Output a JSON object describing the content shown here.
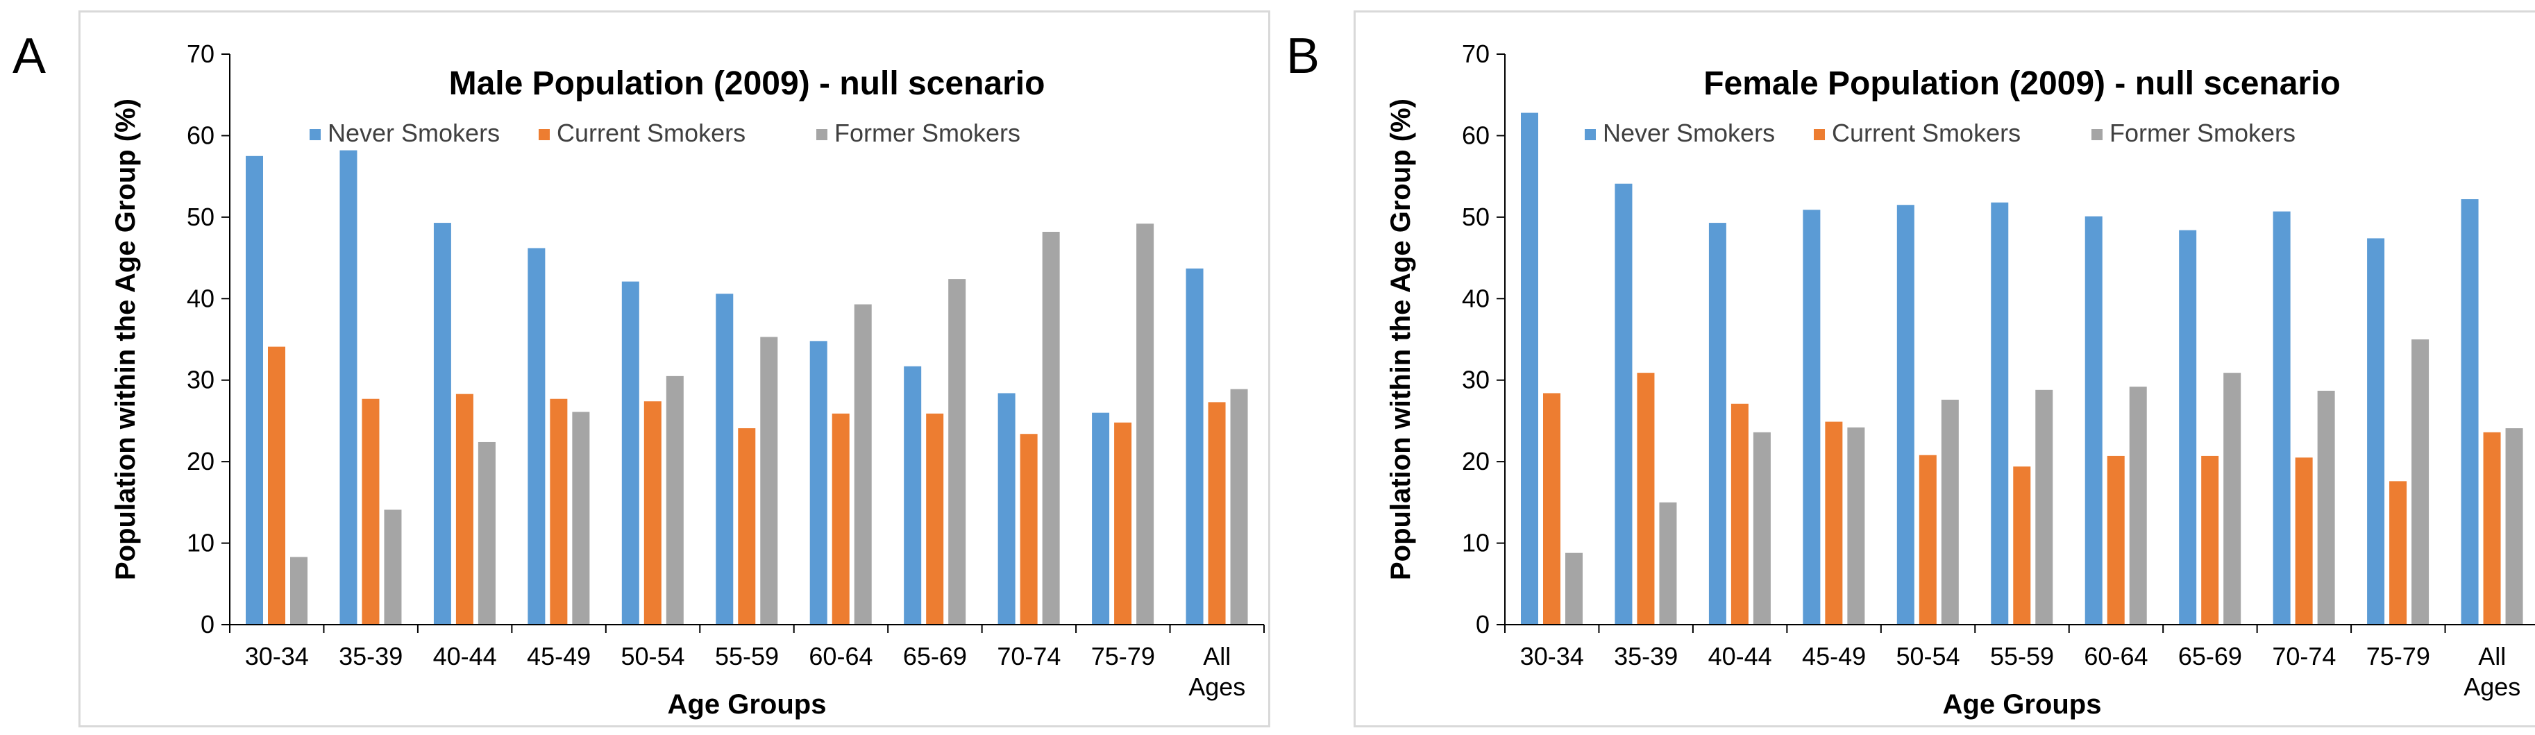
{
  "panel_labels": [
    "A",
    "B"
  ],
  "colors": {
    "never": "#5b9bd5",
    "current": "#ed7d31",
    "former": "#a5a5a5",
    "axis": "#000000",
    "frame": "#d9d9d9"
  },
  "chart_data": [
    {
      "type": "bar",
      "title": "Male Population (2009) - null scenario",
      "xlabel": "Age Groups",
      "ylabel": "Population within the Age Group (%)",
      "ylim": [
        0,
        70
      ],
      "yticks": [
        0,
        10,
        20,
        30,
        40,
        50,
        60,
        70
      ],
      "grid": false,
      "legend_position": "top-right",
      "categories": [
        "30-34",
        "35-39",
        "40-44",
        "45-49",
        "50-54",
        "55-59",
        "60-64",
        "65-69",
        "70-74",
        "75-79",
        "All Ages"
      ],
      "series": [
        {
          "name": "Never Smokers",
          "values": [
            57.5,
            58.2,
            49.3,
            46.2,
            42.1,
            40.6,
            34.8,
            31.7,
            28.4,
            26.0,
            43.7
          ]
        },
        {
          "name": "Current Smokers",
          "values": [
            34.1,
            27.7,
            28.3,
            27.7,
            27.4,
            24.1,
            25.9,
            25.9,
            23.4,
            24.8,
            27.3
          ]
        },
        {
          "name": "Former Smokers",
          "values": [
            8.3,
            14.1,
            22.4,
            26.1,
            30.5,
            35.3,
            39.3,
            42.4,
            48.2,
            49.2,
            28.9
          ]
        }
      ]
    },
    {
      "type": "bar",
      "title": "Female Population (2009) - null scenario",
      "xlabel": "Age Groups",
      "ylabel": "Population within the Age Group (%)",
      "ylim": [
        0,
        70
      ],
      "yticks": [
        0,
        10,
        20,
        30,
        40,
        50,
        60,
        70
      ],
      "grid": false,
      "legend_position": "top-right",
      "categories": [
        "30-34",
        "35-39",
        "40-44",
        "45-49",
        "50-54",
        "55-59",
        "60-64",
        "65-69",
        "70-74",
        "75-79",
        "All Ages"
      ],
      "series": [
        {
          "name": "Never Smokers",
          "values": [
            62.8,
            54.1,
            49.3,
            50.9,
            51.5,
            51.8,
            50.1,
            48.4,
            50.7,
            47.4,
            52.2
          ]
        },
        {
          "name": "Current Smokers",
          "values": [
            28.4,
            30.9,
            27.1,
            24.9,
            20.8,
            19.4,
            20.7,
            20.7,
            20.5,
            17.6,
            23.6
          ]
        },
        {
          "name": "Former Smokers",
          "values": [
            8.8,
            15.0,
            23.6,
            24.2,
            27.6,
            28.8,
            29.2,
            30.9,
            28.7,
            35.0,
            24.1
          ]
        }
      ]
    }
  ]
}
